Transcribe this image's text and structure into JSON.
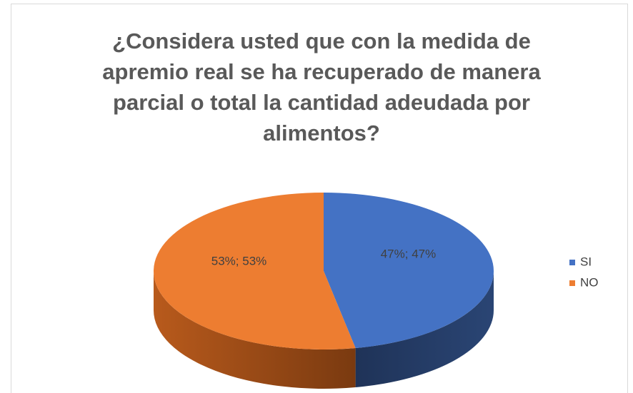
{
  "chart_data": {
    "type": "pie",
    "title": "¿Considera usted que con la medida de apremio real se ha recuperado de manera parcial o total la cantidad adeudada por alimentos?",
    "categories": [
      "SI",
      "NO"
    ],
    "values": [
      47,
      53
    ],
    "value_labels": [
      "47%; 47%",
      "53%; 53%"
    ],
    "colors": [
      "#4472c4",
      "#ed7d31"
    ],
    "legend": "right"
  }
}
